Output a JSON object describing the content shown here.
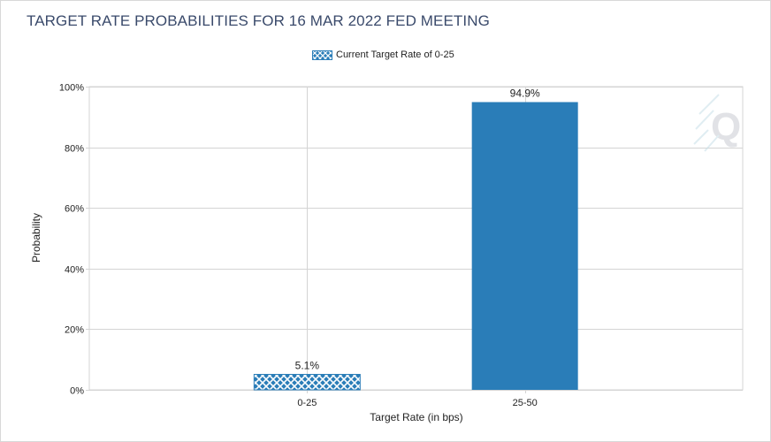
{
  "title": "TARGET RATE PROBABILITIES FOR 16 MAR 2022 FED MEETING",
  "legend": {
    "label": "Current Target Rate of 0-25"
  },
  "watermark": {
    "letter": "Q"
  },
  "colors": {
    "bar": "#2a7db8",
    "hatch": "#2a7db8",
    "grid": "#d4d4d4",
    "title": "#3a4a6b"
  },
  "chart_data": {
    "type": "bar",
    "title": "TARGET RATE PROBABILITIES FOR 16 MAR 2022 FED MEETING",
    "xlabel": "Target Rate (in bps)",
    "ylabel": "Probability",
    "categories": [
      "0-25",
      "25-50"
    ],
    "values": [
      5.1,
      94.9
    ],
    "value_labels": [
      "5.1%",
      "94.9%"
    ],
    "current_target_category": "0-25",
    "ylim": [
      0,
      100
    ],
    "yticks": [
      0,
      20,
      40,
      60,
      80,
      100
    ],
    "ytick_labels": [
      "0%",
      "20%",
      "40%",
      "60%",
      "80%",
      "100%"
    ],
    "grid": true,
    "legend_position": "top-center"
  }
}
